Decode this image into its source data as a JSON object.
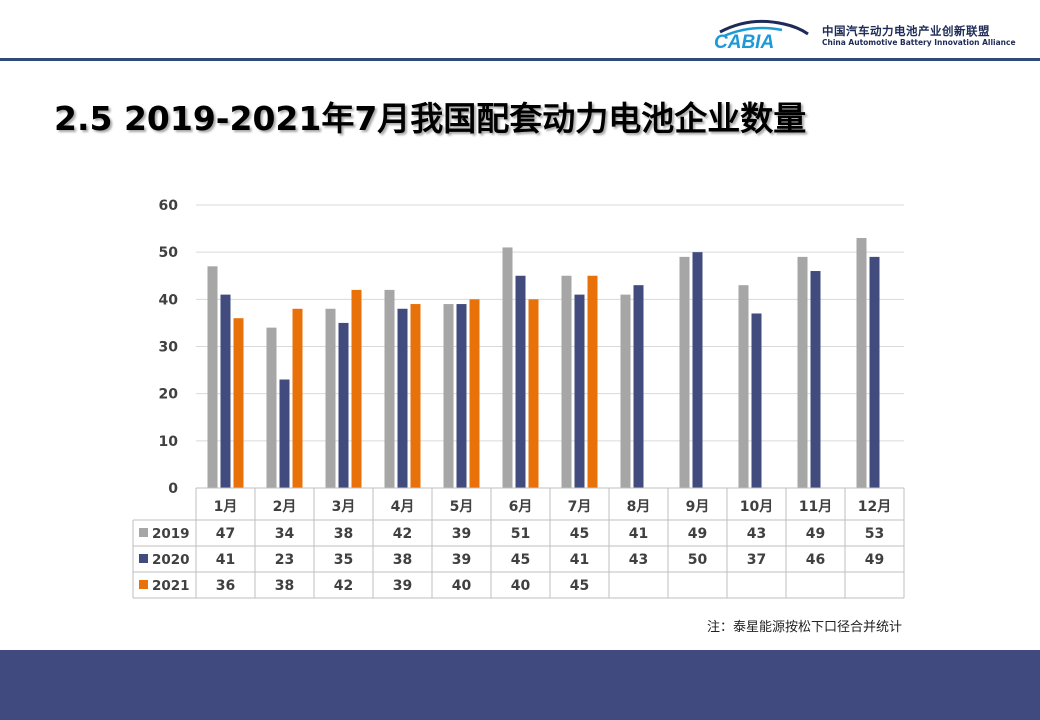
{
  "header": {
    "logo_text": "CABIA",
    "org_name_cn": "中国汽车动力电池产业创新联盟",
    "org_name_en": "China Automotive Battery Innovation Alliance"
  },
  "title": "2.5 2019-2021年7月我国配套动力电池企业数量",
  "footnote": "注：泰星能源按松下口径合并统计",
  "colors": {
    "2019": "#a6a6a6",
    "2020": "#424b7e",
    "2021": "#e8710a",
    "grid": "#d9d9d9",
    "band": "#414a7e"
  },
  "chart_data": {
    "type": "bar",
    "categories": [
      "1月",
      "2月",
      "3月",
      "4月",
      "5月",
      "6月",
      "7月",
      "8月",
      "9月",
      "10月",
      "11月",
      "12月"
    ],
    "series": [
      {
        "name": "2019",
        "values": [
          47,
          34,
          38,
          42,
          39,
          51,
          45,
          41,
          49,
          43,
          49,
          53
        ]
      },
      {
        "name": "2020",
        "values": [
          41,
          23,
          35,
          38,
          39,
          45,
          41,
          43,
          50,
          37,
          46,
          49
        ]
      },
      {
        "name": "2021",
        "values": [
          36,
          38,
          42,
          39,
          40,
          40,
          45,
          null,
          null,
          null,
          null,
          null
        ]
      }
    ],
    "ylim": [
      0,
      60
    ],
    "yticks": [
      0,
      10,
      20,
      30,
      40,
      50,
      60
    ],
    "grid": true,
    "legend": "data-table-left"
  }
}
